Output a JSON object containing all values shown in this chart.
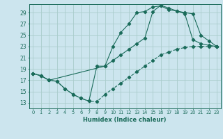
{
  "bg_color": "#cce5ee",
  "grid_color": "#aacccc",
  "line_color": "#1a6b5a",
  "xlabel": "Humidex (Indice chaleur)",
  "xlim": [
    -0.5,
    23.5
  ],
  "ylim": [
    12,
    30.5
  ],
  "yticks": [
    13,
    15,
    17,
    19,
    21,
    23,
    25,
    27,
    29
  ],
  "xticks": [
    0,
    1,
    2,
    3,
    4,
    5,
    6,
    7,
    8,
    9,
    10,
    11,
    12,
    13,
    14,
    15,
    16,
    17,
    18,
    19,
    20,
    21,
    22,
    23
  ],
  "s1_x": [
    0,
    1,
    2,
    3,
    4,
    5,
    6,
    7,
    8,
    9,
    10,
    11,
    12,
    13,
    14,
    15,
    16,
    17,
    18,
    19,
    20,
    21,
    22,
    23
  ],
  "s1_y": [
    18.2,
    17.8,
    17.0,
    16.8,
    15.5,
    14.5,
    13.8,
    13.3,
    13.2,
    14.5,
    15.5,
    16.5,
    17.5,
    18.5,
    19.5,
    20.5,
    21.5,
    22.0,
    22.5,
    22.8,
    23.0,
    23.0,
    23.0,
    23.0
  ],
  "s2_x": [
    0,
    1,
    2,
    3,
    4,
    5,
    6,
    7,
    8,
    9,
    10,
    11,
    12,
    13,
    14,
    15,
    16,
    17,
    18,
    19,
    20,
    21,
    22,
    23
  ],
  "s2_y": [
    18.2,
    17.8,
    17.0,
    16.8,
    15.5,
    14.5,
    13.8,
    13.3,
    19.5,
    19.5,
    23.0,
    25.5,
    27.0,
    29.0,
    29.2,
    30.0,
    30.2,
    29.5,
    29.3,
    28.8,
    24.2,
    23.5,
    23.2,
    23.0
  ],
  "s3_x": [
    0,
    1,
    2,
    9,
    10,
    11,
    12,
    13,
    14,
    15,
    16,
    17,
    18,
    19,
    20,
    21,
    22,
    23
  ],
  "s3_y": [
    18.2,
    17.8,
    17.0,
    19.5,
    20.5,
    21.5,
    22.5,
    23.5,
    24.5,
    29.2,
    30.3,
    29.8,
    29.3,
    29.0,
    28.8,
    25.0,
    24.0,
    23.0
  ]
}
